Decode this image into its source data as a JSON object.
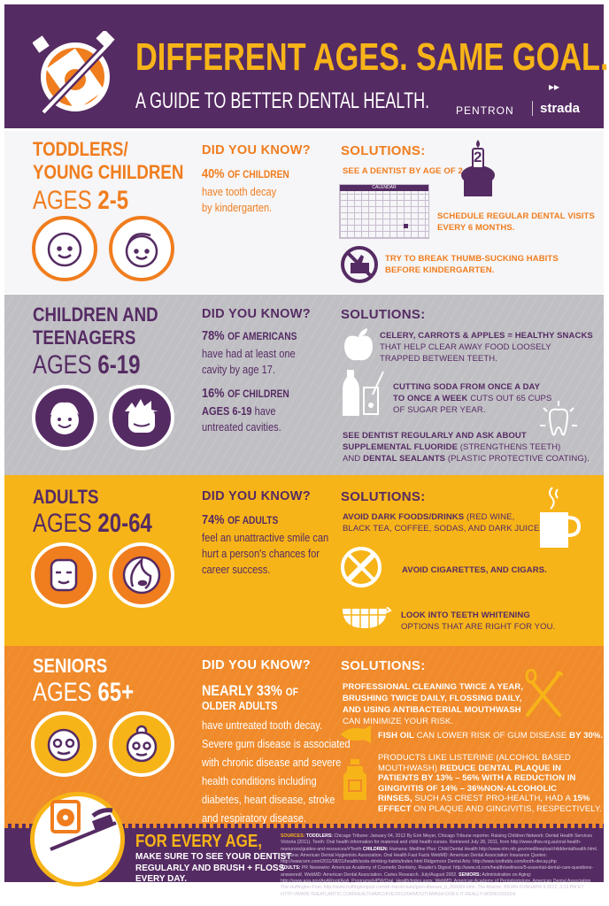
{
  "header": {
    "title": "DIFFERENT AGES. SAME GOAL.",
    "subtitle": "A GUIDE TO BETTER DENTAL HEALTH.",
    "brand1": "PENTRON",
    "brand2": "strada"
  },
  "sections": [
    {
      "title1": "TODDLERS/",
      "title2": "YOUNG CHILDREN",
      "ages_label": "AGES",
      "ages": "2-5",
      "dyk": "DID YOU KNOW?",
      "stat": "40%",
      "stat_rest": "OF CHILDREN",
      "body1": "have tooth decay",
      "body2": "by kindergarten.",
      "solutions": "SOLUTIONS:",
      "sol1": "SEE A DENTIST BY AGE OF 2.",
      "calendar": "CALENDAR",
      "cupcake_number": "2",
      "sol2a": "SCHEDULE REGULAR DENTAL VISITS",
      "sol2b": "EVERY 6 MONTHS.",
      "sol3a": "TRY TO BREAK THUMB-SUCKING HABITS",
      "sol3b": "BEFORE KINDERGARTEN."
    },
    {
      "title1": "CHILDREN AND",
      "title2": "TEENAGERS",
      "ages_label": "AGES",
      "ages": "6-19",
      "dyk": "DID YOU KNOW?",
      "stat": "78%",
      "stat_rest": "OF AMERICANS",
      "body1": "have had at least one",
      "body2": "cavity by age 17.",
      "stat2": "16%",
      "stat2_rest": "OF CHILDREN",
      "stat2_line2": "AGES 6-19",
      "stat2_have": "have",
      "body3": "untreated cavities.",
      "solutions": "SOLUTIONS:",
      "sol1a": "CELERY, CARROTS & APPLES = HEALTHY SNACKS",
      "sol1b": "THAT HELP CLEAR AWAY FOOD LOOSELY",
      "sol1c": "TRAPPED BETWEEN TEETH.",
      "sol2a": "CUTTING SODA FROM ONCE A DAY",
      "sol2b_bold": "TO ONCE A WEEK",
      "sol2b_rest": "CUTS OUT 65 CUPS",
      "sol2c": "OF SUGAR PER YEAR.",
      "sol3a": "SEE DENTIST REGULARLY AND ASK ABOUT",
      "sol3b_bold": "SUPPLEMENTAL FLUORIDE",
      "sol3b_rest": "(STRENGTHENS TEETH)",
      "sol3c_and": "AND",
      "sol3c_bold": "DENTAL SEALANTS",
      "sol3c_rest": "(PLASTIC PROTECTIVE COATING)."
    },
    {
      "title1": "ADULTS",
      "ages_label": "AGES",
      "ages": "20-64",
      "dyk": "DID YOU KNOW?",
      "stat": "74%",
      "stat_rest": "OF ADULTS",
      "body1": "feel an unattractive smile can",
      "body2": "hurt a person's chances for",
      "body3": "career success.",
      "solutions": "SOLUTIONS:",
      "sol1_bold": "AVOID DARK FOODS/DRINKS",
      "sol1_rest": "(RED WINE,",
      "sol1b": "BLACK TEA, COFFEE, SODAS, AND DARK JUICES).",
      "sol2": "AVOID CIGARETTES, AND CIGARS.",
      "sol3a": "LOOK INTO TEETH WHITENING",
      "sol3b": "OPTIONS THAT ARE RIGHT FOR YOU."
    },
    {
      "title1": "SENIORS",
      "ages_label": "AGES",
      "ages": "65+",
      "dyk": "DID YOU KNOW?",
      "stat": "NEARLY 33%",
      "stat_rest": "OF",
      "stat_line2": "OLDER ADULTS",
      "body": [
        "have untreated tooth decay.",
        "Severe gum disease is associated",
        "with chronic disease and severe",
        "health conditions including",
        "diabetes, heart disease, stroke",
        "and respiratory disease."
      ],
      "solutions": "SOLUTIONS:",
      "sol1": [
        "PROFESSIONAL CLEANING TWICE A YEAR,",
        "BRUSHING TWICE DAILY, FLOSSING DAILY,",
        "AND USING ANTIBACTERIAL MOUTHWASH"
      ],
      "sol1_rest": "CAN MINIMIZE YOUR RISK.",
      "sol2_bold": "FISH OIL",
      "sol2_rest": "CAN LOWER RISK OF GUM DISEASE",
      "sol2_bold2": "BY 30%.",
      "sol3_l1": "PRODUCTS LIKE LISTERINE (ALCOHOL BASED",
      "sol3_l2a": "MOUTHWASH)",
      "sol3_l2b": "REDUCE DENTAL PLAQUE IN",
      "sol3_l3": "PATIENTS BY 13% – 56% WITH A REDUCTION IN",
      "sol3_l4": "GINGIVITIS OF 14% – 36%NON-ALCOHOLIC",
      "sol3_l5a": "RINSES,",
      "sol3_l5b": "SUCH AS CREST PRO-HEALTH, HAD A",
      "sol3_l5c": "15%",
      "sol3_l6a": "EFFECT",
      "sol3_l6b": "ON PLAQUE AND GINGIVITIS, RESPECTIVELY."
    }
  ],
  "footer": {
    "headline": "FOR EVERY AGE,",
    "line1": "MAKE SURE TO SEE YOUR DENTIST",
    "line2": "REGULARLY AND BRUSH + FLOSS",
    "line3": "EVERY DAY.",
    "sources_label": "SOURCES:",
    "src_toddlers_label": "TODDLERS:",
    "src_toddlers": "Chicago Tribune: January 04, 2012 By Erin Meyer, Chicago Tribune reporter. Raising Children Network: Dental Health Services Victoria (2011). Teeth: Oral health information for maternal and child health nurses. Retrieved July 28, 2011, from http://www.dhsv.org.au/oral-health-resources/guides-and-resources/#Teeth",
    "src_children_label": "CHILDREN:",
    "src_children": "Humana: Medline Plus: Child Dental Health http://www.nlm.nih.gov/medlineplus/childdentalhealth.html. Humana: American Dental Hygienists Association. Oral Health Fast Facts WebMD: American Dental Association Insurance Quotes: http://www.ivm.com/2011/08/31/health/soda-drinking-habits/index.html Ridgemoor Dental Arts: http://www.toothdds.com/tooth-decay.php",
    "src_adults_label": "ADULTS:",
    "src_adults": "PR Newswire: American Academy of Cosmetic Dentistry. Reader's Digest: http://www.rd.com/health/wellness/5-essential-dental-care-questions-answered/. WebMD: American Dental Association. Caries Research. July/August 2002.",
    "src_seniors_label": "SENIORS:",
    "src_seniors": "Administration on Aging: http://www.aoa.gov/AoARoot/AoA_Programs/HPW/Oral_Health/index.aspx. WebMD: American Academy of Periodontology. American Dental Association The Huffington Post: http://www.huffingtonpost.com/dr-harold-katz/gum-disease_b_869069.html. The Atlantic: BRIAN FUNGAPR 9 2012, 3:13 PM ET HTTP://WWW.THEATLANTIC.COM/HEALTH/ARCHIVE/2012/04/MOUTHWASH-DOES-IT-REALLY-WORK/255624/"
  },
  "colors": {
    "purple": "#552b63",
    "orange": "#f07d1e",
    "yellow": "#f7b418",
    "gray": "#c0bfc4"
  }
}
